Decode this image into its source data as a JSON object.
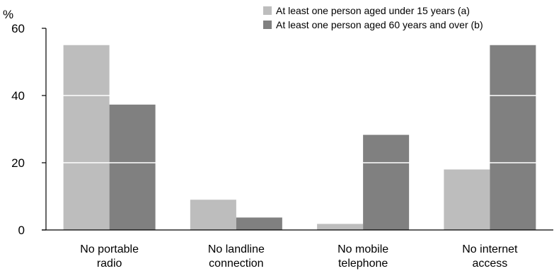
{
  "chart_data": {
    "type": "bar",
    "title": "",
    "xlabel": "",
    "ylabel": "%",
    "ylim": [
      0,
      60
    ],
    "yticks": [
      0,
      20,
      40,
      60
    ],
    "grid": "white horizontal lines at 20 and 40 drawn over bars",
    "legend_position": "top-right",
    "categories": [
      [
        "No portable",
        "radio"
      ],
      [
        "No landline",
        "connection"
      ],
      [
        "No mobile",
        "telephone"
      ],
      [
        "No internet",
        "access"
      ]
    ],
    "series": [
      {
        "name": "At least one person aged under 15 years (a)",
        "color": "#bdbdbd",
        "values": [
          55,
          9,
          1.8,
          18
        ]
      },
      {
        "name": "At least one person aged 60 years and over (b)",
        "color": "#808080",
        "values": [
          37.3,
          3.7,
          28.3,
          55
        ]
      }
    ]
  }
}
